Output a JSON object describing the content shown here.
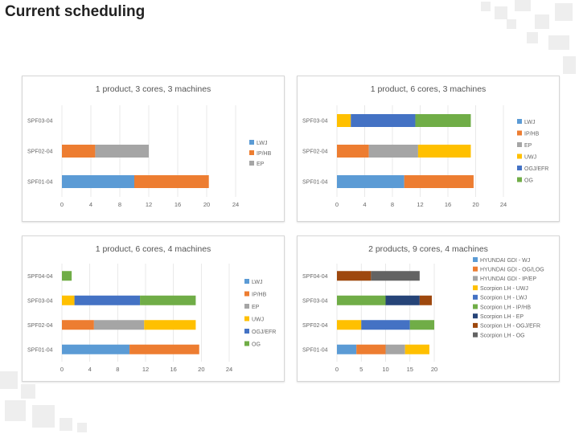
{
  "page": {
    "title": "Current scheduling"
  },
  "colors": {
    "blue": "#5b9bd5",
    "orange": "#ed7d31",
    "gray": "#a5a5a5",
    "yellow": "#ffc000",
    "navy": "#4472c4",
    "green": "#70ad47",
    "dark_blue": "#264478",
    "brown": "#9e480e",
    "dark_gray": "#636363"
  },
  "chart_data": [
    {
      "type": "bar",
      "orientation": "horizontal",
      "stacked": true,
      "title": "1 product, 3 cores, 3 machines",
      "categories": [
        "SPF01-04",
        "SPF02-04",
        "SPF03-04"
      ],
      "xlim": [
        0,
        24
      ],
      "xticks": [
        "0",
        "4",
        "8",
        "12",
        "16",
        "20",
        "24"
      ],
      "series": [
        {
          "name": "LWJ",
          "color": "#5b9bd5",
          "values": [
            10,
            0,
            0
          ]
        },
        {
          "name": "IP/HB",
          "color": "#ed7d31",
          "values": [
            10.3,
            4.6,
            0
          ]
        },
        {
          "name": "EP",
          "color": "#a5a5a5",
          "values": [
            0,
            7.4,
            0
          ]
        }
      ]
    },
    {
      "type": "bar",
      "orientation": "horizontal",
      "stacked": true,
      "title": "1 product, 6 cores, 3 machines",
      "categories": [
        "SPF01-04",
        "SPF02-04",
        "SPF03-04"
      ],
      "xlim": [
        0,
        24
      ],
      "xticks": [
        "0",
        "4",
        "8",
        "12",
        "16",
        "20",
        "24"
      ],
      "series": [
        {
          "name": "LWJ",
          "color": "#5b9bd5",
          "values": [
            9.7,
            0,
            0
          ]
        },
        {
          "name": "IP/HB",
          "color": "#ed7d31",
          "values": [
            10,
            4.6,
            0
          ]
        },
        {
          "name": "EP",
          "color": "#a5a5a5",
          "values": [
            0,
            7.1,
            0
          ]
        },
        {
          "name": "UWJ",
          "color": "#ffc000",
          "values": [
            0,
            7.6,
            2
          ]
        },
        {
          "name": "OGJ/EFR",
          "color": "#4472c4",
          "values": [
            0,
            0,
            9.3
          ]
        },
        {
          "name": "OG",
          "color": "#70ad47",
          "values": [
            0,
            0,
            8
          ]
        }
      ]
    },
    {
      "type": "bar",
      "orientation": "horizontal",
      "stacked": true,
      "title": "1 product, 6 cores, 4 machines",
      "categories": [
        "SPF01-04",
        "SPF02-04",
        "SPF03-04",
        "SPF04-04"
      ],
      "xlim": [
        0,
        24
      ],
      "xticks": [
        "0",
        "4",
        "8",
        "12",
        "16",
        "20",
        "24"
      ],
      "series": [
        {
          "name": "LWJ",
          "color": "#5b9bd5",
          "values": [
            9.7,
            0,
            0,
            0
          ]
        },
        {
          "name": "IP/HB",
          "color": "#ed7d31",
          "values": [
            10,
            4.6,
            0,
            0
          ]
        },
        {
          "name": "EP",
          "color": "#a5a5a5",
          "values": [
            0,
            7.2,
            0,
            0
          ]
        },
        {
          "name": "UWJ",
          "color": "#ffc000",
          "values": [
            0,
            7.4,
            1.8,
            0
          ]
        },
        {
          "name": "OGJ/EFR",
          "color": "#4472c4",
          "values": [
            0,
            0,
            9.4,
            0
          ]
        },
        {
          "name": "OG",
          "color": "#70ad47",
          "values": [
            0,
            0,
            8,
            1.4
          ]
        }
      ]
    },
    {
      "type": "bar",
      "orientation": "horizontal",
      "stacked": true,
      "title": "2 products, 9 cores, 4 machines",
      "categories": [
        "SPF01-04",
        "SPF02-04",
        "SPF03-04",
        "SPF04-04"
      ],
      "xlim": [
        0,
        20
      ],
      "xticks": [
        "0",
        "5",
        "10",
        "15",
        "20"
      ],
      "series": [
        {
          "name": "HYUNDAI GDI - WJ",
          "color": "#5b9bd5",
          "values": [
            4,
            0,
            0,
            0
          ]
        },
        {
          "name": "HYUNDAI GDI - OG/LOG",
          "color": "#ed7d31",
          "values": [
            6,
            0,
            0,
            0
          ]
        },
        {
          "name": "HYUNDAI GDI - IP/EP",
          "color": "#a5a5a5",
          "values": [
            4,
            0,
            0,
            0
          ]
        },
        {
          "name": "Scorpion LH - UWJ",
          "color": "#ffc000",
          "values": [
            5,
            5,
            0,
            0
          ]
        },
        {
          "name": "Scorpion LH - LWJ",
          "color": "#4472c4",
          "values": [
            0,
            10,
            0,
            0
          ]
        },
        {
          "name": "Scorpion LH - IP/HB",
          "color": "#70ad47",
          "values": [
            0,
            5,
            10,
            0
          ]
        },
        {
          "name": "Scorpion LH - EP",
          "color": "#264478",
          "values": [
            0,
            0,
            7,
            0
          ]
        },
        {
          "name": "Scorpion LH - OGJ/EFR",
          "color": "#9e480e",
          "values": [
            0,
            0,
            2.5,
            7
          ]
        },
        {
          "name": "Scorpion LH - OG",
          "color": "#636363",
          "values": [
            0,
            0,
            0,
            10
          ]
        }
      ]
    }
  ]
}
